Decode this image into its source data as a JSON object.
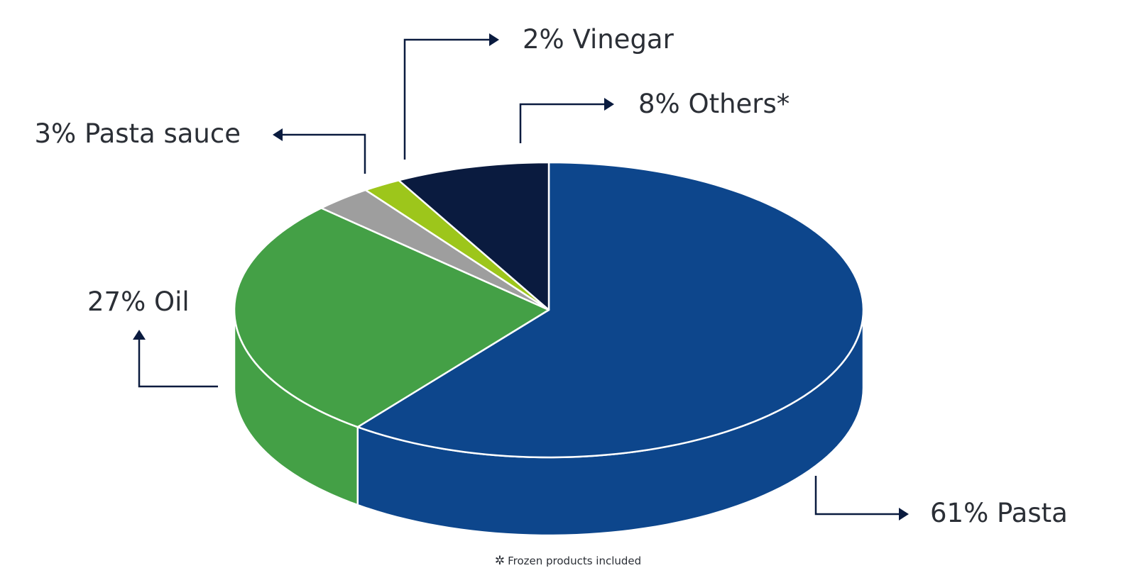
{
  "chart_data": {
    "type": "pie",
    "style": "3d",
    "legend": "none",
    "slices": [
      {
        "label": "Pasta",
        "value": 61,
        "color": "#0d468c",
        "label_text": "61% Pasta"
      },
      {
        "label": "Oil",
        "value": 27,
        "color": "#44a046",
        "label_text": "27% Oil"
      },
      {
        "label": "Pasta sauce",
        "value": 3,
        "color": "#9e9e9e",
        "label_text": "3% Pasta sauce"
      },
      {
        "label": "Vinegar",
        "value": 2,
        "color": "#9dc61b",
        "label_text": "2% Vinegar"
      },
      {
        "label": "Others*",
        "value": 8,
        "color": "#0a1b3f",
        "label_text": "8% Others*"
      }
    ],
    "arrow_color": "#0a1b3f",
    "footnote": {
      "symbol": "✲",
      "text": "Frozen products included"
    }
  }
}
